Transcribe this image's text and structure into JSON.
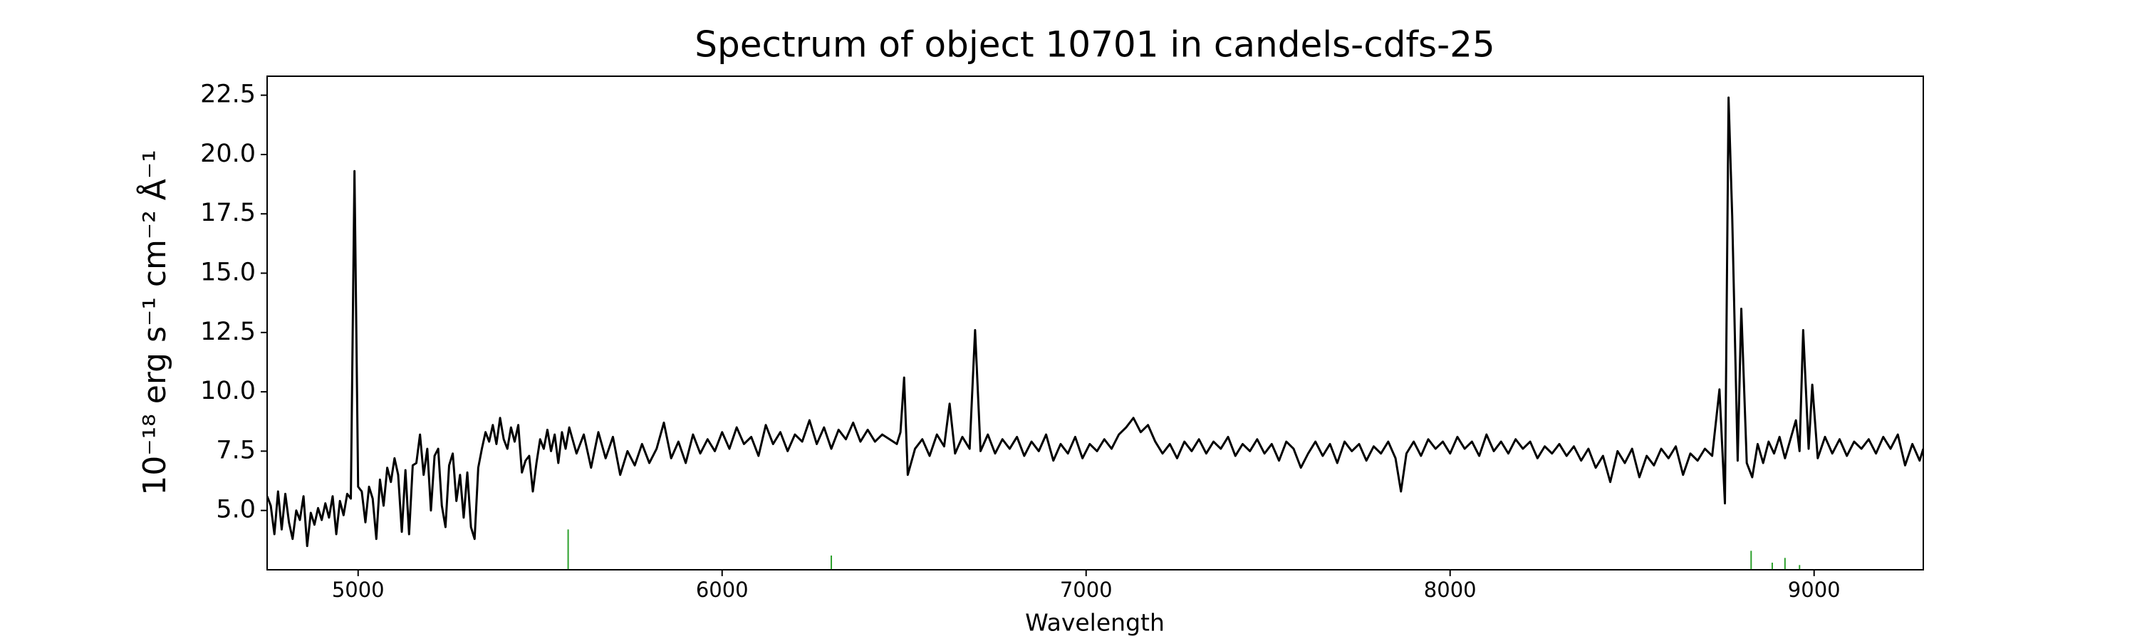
{
  "chart_data": {
    "type": "line",
    "title": "Spectrum of object 10701 in candels-cdfs-25",
    "xlabel": "Wavelength",
    "ylabel": "10⁻¹⁸ erg s⁻¹ cm⁻² Å⁻¹",
    "xlim": [
      4750,
      9300
    ],
    "ylim": [
      2.5,
      23.3
    ],
    "xticks": [
      5000,
      6000,
      7000,
      8000,
      9000
    ],
    "yticks": [
      {
        "value": 5,
        "label": "5.0"
      },
      7.5,
      {
        "value": 10,
        "label": "10.0"
      },
      12.5,
      {
        "value": 15,
        "label": "15.0"
      },
      17.5,
      {
        "value": 20,
        "label": "20.0"
      },
      22.5
    ],
    "grid": false,
    "x": [
      4750,
      4760,
      4770,
      4780,
      4790,
      4800,
      4810,
      4820,
      4830,
      4840,
      4850,
      4860,
      4870,
      4880,
      4890,
      4900,
      4910,
      4920,
      4930,
      4940,
      4950,
      4960,
      4970,
      4980,
      4990,
      5000,
      5010,
      5020,
      5030,
      5040,
      5050,
      5060,
      5070,
      5080,
      5090,
      5100,
      5110,
      5120,
      5130,
      5140,
      5150,
      5160,
      5170,
      5180,
      5190,
      5200,
      5210,
      5220,
      5230,
      5240,
      5250,
      5260,
      5270,
      5280,
      5290,
      5300,
      5310,
      5320,
      5330,
      5340,
      5350,
      5360,
      5370,
      5380,
      5390,
      5400,
      5410,
      5420,
      5430,
      5440,
      5450,
      5460,
      5470,
      5480,
      5490,
      5500,
      5510,
      5520,
      5530,
      5540,
      5550,
      5560,
      5570,
      5580,
      5600,
      5620,
      5640,
      5660,
      5680,
      5700,
      5720,
      5740,
      5760,
      5780,
      5800,
      5820,
      5840,
      5860,
      5880,
      5900,
      5920,
      5940,
      5960,
      5980,
      6000,
      6020,
      6040,
      6060,
      6080,
      6100,
      6120,
      6140,
      6160,
      6180,
      6200,
      6220,
      6240,
      6260,
      6280,
      6300,
      6320,
      6340,
      6360,
      6380,
      6400,
      6420,
      6440,
      6460,
      6480,
      6490,
      6500,
      6510,
      6530,
      6550,
      6570,
      6590,
      6610,
      6625,
      6640,
      6660,
      6680,
      6695,
      6710,
      6730,
      6750,
      6770,
      6790,
      6810,
      6830,
      6850,
      6870,
      6890,
      6910,
      6930,
      6950,
      6970,
      6990,
      7010,
      7030,
      7050,
      7070,
      7090,
      7110,
      7130,
      7150,
      7170,
      7190,
      7210,
      7230,
      7250,
      7270,
      7290,
      7310,
      7330,
      7350,
      7370,
      7390,
      7410,
      7430,
      7450,
      7470,
      7490,
      7510,
      7530,
      7550,
      7570,
      7590,
      7610,
      7630,
      7650,
      7670,
      7690,
      7710,
      7730,
      7750,
      7770,
      7790,
      7810,
      7830,
      7850,
      7865,
      7880,
      7900,
      7920,
      7940,
      7960,
      7980,
      8000,
      8020,
      8040,
      8060,
      8080,
      8100,
      8120,
      8140,
      8160,
      8180,
      8200,
      8220,
      8240,
      8260,
      8280,
      8300,
      8320,
      8340,
      8360,
      8380,
      8400,
      8420,
      8440,
      8460,
      8480,
      8500,
      8520,
      8540,
      8560,
      8580,
      8600,
      8620,
      8640,
      8660,
      8680,
      8700,
      8720,
      8740,
      8755,
      8765,
      8775,
      8790,
      8800,
      8815,
      8830,
      8845,
      8860,
      8875,
      8890,
      8905,
      8920,
      8935,
      8950,
      8960,
      8970,
      8985,
      8995,
      9010,
      9030,
      9050,
      9070,
      9090,
      9110,
      9130,
      9150,
      9170,
      9190,
      9210,
      9230,
      9250,
      9270,
      9290,
      9300
    ],
    "series": [
      {
        "color": "#000000",
        "values": [
          5.6,
          5.2,
          4.0,
          5.8,
          4.2,
          5.7,
          4.5,
          3.8,
          5.0,
          4.6,
          5.6,
          3.5,
          4.9,
          4.4,
          5.1,
          4.6,
          5.3,
          4.7,
          5.6,
          4.0,
          5.4,
          4.8,
          5.7,
          5.5,
          19.3,
          6.0,
          5.8,
          4.5,
          6.0,
          5.5,
          3.8,
          6.3,
          5.2,
          6.8,
          6.2,
          7.2,
          6.5,
          4.1,
          6.7,
          4.0,
          6.9,
          7.0,
          8.2,
          6.5,
          7.6,
          5.0,
          7.3,
          7.6,
          5.2,
          4.3,
          6.9,
          7.4,
          5.4,
          6.5,
          4.7,
          6.6,
          4.3,
          3.8,
          6.8,
          7.6,
          8.3,
          7.9,
          8.6,
          7.8,
          8.9,
          8.0,
          7.6,
          8.5,
          7.9,
          8.6,
          6.6,
          7.1,
          7.3,
          5.8,
          7.0,
          8.0,
          7.6,
          8.4,
          7.5,
          8.2,
          7.0,
          8.3,
          7.6,
          8.5,
          7.4,
          8.2,
          6.8,
          8.3,
          7.2,
          8.1,
          6.5,
          7.5,
          6.9,
          7.8,
          7.0,
          7.6,
          8.7,
          7.2,
          7.9,
          7.0,
          8.2,
          7.4,
          8.0,
          7.5,
          8.3,
          7.6,
          8.5,
          7.8,
          8.1,
          7.3,
          8.6,
          7.8,
          8.3,
          7.5,
          8.2,
          7.9,
          8.8,
          7.8,
          8.5,
          7.6,
          8.4,
          8.0,
          8.7,
          7.9,
          8.4,
          7.9,
          8.2,
          8.0,
          7.8,
          8.3,
          10.6,
          6.5,
          7.6,
          8.0,
          7.3,
          8.2,
          7.7,
          9.5,
          7.4,
          8.1,
          7.6,
          12.6,
          7.5,
          8.2,
          7.4,
          8.0,
          7.6,
          8.1,
          7.3,
          7.9,
          7.5,
          8.2,
          7.1,
          7.8,
          7.4,
          8.1,
          7.2,
          7.8,
          7.5,
          8.0,
          7.6,
          8.2,
          8.5,
          8.9,
          8.3,
          8.6,
          7.9,
          7.4,
          7.8,
          7.2,
          7.9,
          7.5,
          8.0,
          7.4,
          7.9,
          7.6,
          8.1,
          7.3,
          7.8,
          7.5,
          8.0,
          7.4,
          7.8,
          7.1,
          7.9,
          7.6,
          6.8,
          7.4,
          7.9,
          7.3,
          7.8,
          7.0,
          7.9,
          7.5,
          7.8,
          7.1,
          7.7,
          7.4,
          7.9,
          7.2,
          5.8,
          7.4,
          7.9,
          7.3,
          8.0,
          7.6,
          7.9,
          7.4,
          8.1,
          7.6,
          7.9,
          7.3,
          8.2,
          7.5,
          7.9,
          7.4,
          8.0,
          7.6,
          7.9,
          7.2,
          7.7,
          7.4,
          7.8,
          7.3,
          7.7,
          7.1,
          7.6,
          6.8,
          7.3,
          6.2,
          7.5,
          7.0,
          7.6,
          6.4,
          7.3,
          6.9,
          7.6,
          7.2,
          7.7,
          6.5,
          7.4,
          7.1,
          7.6,
          7.3,
          10.1,
          5.3,
          22.4,
          17.4,
          7.1,
          13.5,
          7.0,
          6.4,
          7.8,
          7.0,
          7.9,
          7.4,
          8.1,
          7.2,
          8.0,
          8.8,
          7.5,
          12.6,
          7.6,
          10.3,
          7.2,
          8.1,
          7.4,
          8.0,
          7.3,
          7.9,
          7.6,
          8.0,
          7.4,
          8.1,
          7.6,
          8.2,
          6.9,
          7.8,
          7.1,
          7.6
        ]
      }
    ],
    "vlines": {
      "color": "#2ca02c",
      "x": [
        5577,
        6300,
        8827,
        8885,
        8920,
        8960
      ],
      "values": [
        4.2,
        3.1,
        3.3,
        2.8,
        3.0,
        2.7
      ]
    }
  }
}
